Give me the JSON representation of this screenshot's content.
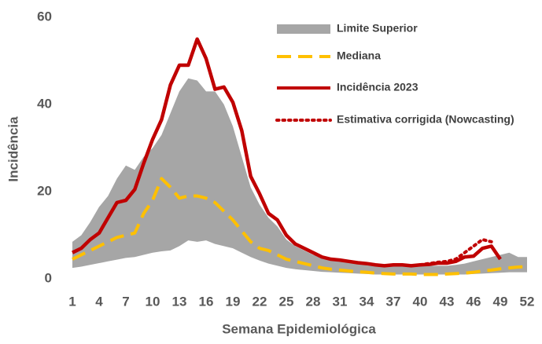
{
  "chart_data": {
    "type": "line",
    "x_label": "Semana Epidemiológica",
    "y_label": "Incidência",
    "x": [
      1,
      2,
      3,
      4,
      5,
      6,
      7,
      8,
      9,
      10,
      11,
      12,
      13,
      14,
      15,
      16,
      17,
      18,
      19,
      20,
      21,
      22,
      23,
      24,
      25,
      26,
      27,
      28,
      29,
      30,
      31,
      32,
      33,
      34,
      35,
      36,
      37,
      38,
      39,
      40,
      41,
      42,
      43,
      44,
      45,
      46,
      47,
      48,
      49,
      50,
      51,
      52
    ],
    "xlim": [
      1,
      52
    ],
    "xticks": [
      1,
      4,
      7,
      10,
      13,
      16,
      19,
      22,
      25,
      28,
      31,
      34,
      37,
      40,
      43,
      46,
      49,
      52
    ],
    "ylim": [
      0,
      60
    ],
    "yticks": [
      0,
      20,
      40,
      60
    ],
    "grid": false,
    "series": [
      {
        "name": "Limite Superior",
        "color": "#a6a6a6",
        "style": "band",
        "values": [
          8.5,
          10,
          13,
          16.5,
          19,
          23,
          26,
          25,
          28,
          30,
          33,
          38,
          43,
          46,
          45.5,
          43,
          43,
          40,
          35,
          28,
          21,
          17,
          14,
          12,
          9,
          7.5,
          6.5,
          5.5,
          5,
          4.5,
          4,
          4,
          3.8,
          3.5,
          3.3,
          3.2,
          3,
          3,
          3,
          3,
          3,
          3,
          3,
          3.2,
          3.5,
          4,
          4.5,
          5,
          5.5,
          6,
          5,
          5
        ],
        "lower": [
          2.5,
          2.8,
          3.2,
          3.6,
          4,
          4.4,
          4.8,
          5,
          5.5,
          6,
          6.3,
          6.5,
          7.5,
          8.8,
          8.5,
          8.8,
          8,
          7.5,
          7,
          6,
          5,
          4.2,
          3.5,
          3,
          2.5,
          2.2,
          2,
          1.8,
          1.6,
          1.5,
          1.4,
          1.3,
          1.2,
          1.1,
          1,
          1,
          1,
          1,
          1,
          1,
          1,
          1,
          1,
          1,
          1,
          1.1,
          1.2,
          1.3,
          1.4,
          1.5,
          1.5,
          1.5
        ]
      },
      {
        "name": "Mediana",
        "color": "#ffc000",
        "style": "dashed",
        "values": [
          4.5,
          5.5,
          6.5,
          7.5,
          8.5,
          9.5,
          10,
          10.5,
          15,
          18,
          23,
          21,
          18.5,
          19,
          19,
          18.5,
          17.5,
          15.5,
          13.5,
          11,
          8.5,
          7,
          6.5,
          5.5,
          4.5,
          4,
          3.5,
          3,
          2.5,
          2.2,
          2,
          1.8,
          1.6,
          1.5,
          1.3,
          1.2,
          1.1,
          1.1,
          1.1,
          1,
          1,
          1,
          1.1,
          1.2,
          1.3,
          1.5,
          1.8,
          2,
          2.3,
          2.5,
          2.7,
          2.8
        ]
      },
      {
        "name": "Incidência 2023",
        "color": "#c00000",
        "style": "solid",
        "values": [
          6,
          7,
          9,
          10.5,
          14,
          17.5,
          18,
          20.5,
          26.5,
          32,
          36.5,
          44.5,
          49,
          49,
          55,
          50.5,
          43.5,
          44,
          40.5,
          34,
          23.5,
          19.5,
          15,
          13.5,
          10,
          8,
          7,
          6,
          5,
          4.5,
          4.3,
          4,
          3.7,
          3.5,
          3.2,
          3,
          3.2,
          3.2,
          3,
          3.2,
          3.3,
          3.6,
          3.6,
          4,
          5,
          5.2,
          7,
          7.5,
          4.5,
          null,
          null,
          null
        ]
      },
      {
        "name": "Estimativa corrigida (Nowcasting)",
        "color": "#c00000",
        "style": "dotted",
        "values": [
          null,
          null,
          null,
          null,
          null,
          null,
          null,
          null,
          null,
          null,
          null,
          null,
          null,
          null,
          null,
          null,
          null,
          null,
          null,
          null,
          null,
          null,
          null,
          null,
          null,
          null,
          null,
          null,
          null,
          null,
          null,
          null,
          null,
          null,
          null,
          null,
          null,
          null,
          null,
          3.2,
          3.5,
          3.8,
          4,
          4.5,
          6,
          7.5,
          9,
          8.5,
          null,
          null,
          null,
          null
        ]
      }
    ]
  }
}
